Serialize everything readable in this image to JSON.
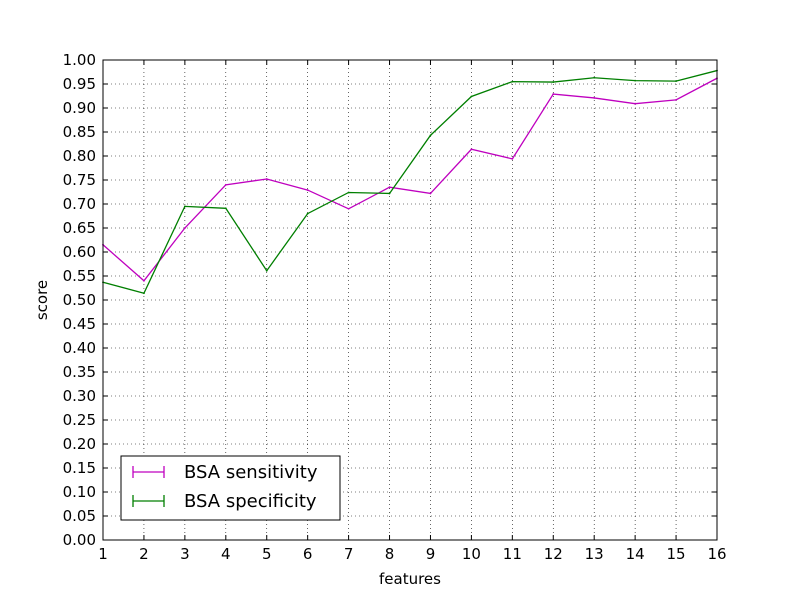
{
  "chart_data": {
    "type": "line",
    "xlabel": "features",
    "ylabel": "score",
    "xlim": [
      1,
      16
    ],
    "ylim": [
      0,
      1.0
    ],
    "x_ticks": [
      "1",
      "2",
      "3",
      "4",
      "5",
      "6",
      "7",
      "8",
      "9",
      "10",
      "11",
      "12",
      "13",
      "14",
      "15",
      "16"
    ],
    "y_ticks": [
      "0.00",
      "0.05",
      "0.10",
      "0.15",
      "0.20",
      "0.25",
      "0.30",
      "0.35",
      "0.40",
      "0.45",
      "0.50",
      "0.55",
      "0.60",
      "0.65",
      "0.70",
      "0.75",
      "0.80",
      "0.85",
      "0.90",
      "0.95",
      "1.00"
    ],
    "grid": true,
    "legend_position": "lower-left",
    "x": [
      1,
      2,
      3,
      4,
      5,
      6,
      7,
      8,
      9,
      10,
      11,
      12,
      13,
      14,
      15,
      16
    ],
    "series": [
      {
        "name": "BSA sensitivity",
        "color": "#bf00bf",
        "values": [
          0.615,
          0.54,
          0.65,
          0.74,
          0.752,
          0.729,
          0.69,
          0.735,
          0.722,
          0.814,
          0.794,
          0.929,
          0.921,
          0.909,
          0.917,
          0.962
        ]
      },
      {
        "name": "BSA specificity",
        "color": "#007f00",
        "values": [
          0.537,
          0.514,
          0.695,
          0.691,
          0.561,
          0.68,
          0.724,
          0.722,
          0.843,
          0.924,
          0.955,
          0.954,
          0.963,
          0.957,
          0.956,
          0.978
        ]
      }
    ]
  }
}
